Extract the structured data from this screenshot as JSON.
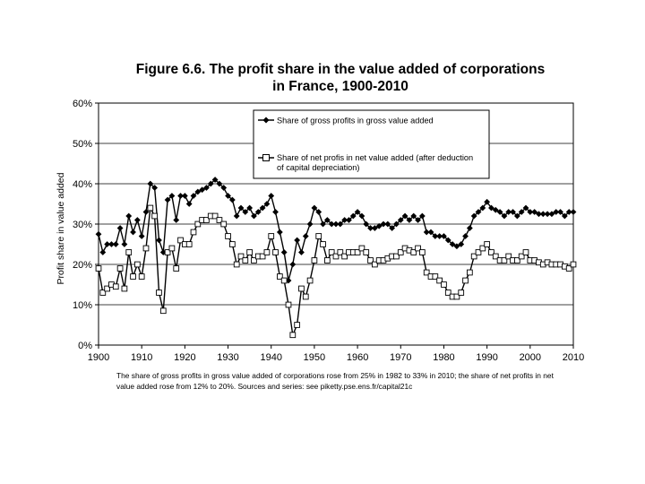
{
  "chart_data": {
    "type": "line",
    "title": [
      "Figure 6.6. The profit share in the value added of corporations",
      "in France, 1900-2010"
    ],
    "ylabel": "Profit share in value added",
    "xlabel": "",
    "xlim": [
      1900,
      2010
    ],
    "ylim": [
      0,
      0.6
    ],
    "x_ticks": [
      1900,
      1910,
      1920,
      1930,
      1940,
      1950,
      1960,
      1970,
      1980,
      1990,
      2000,
      2010
    ],
    "x_tick_labels": [
      "1900",
      "1910",
      "1920",
      "1930",
      "1940",
      "1950",
      "1960",
      "1970",
      "1980",
      "1990",
      "2000",
      "2010"
    ],
    "y_ticks": [
      0,
      0.1,
      0.2,
      0.3,
      0.4,
      0.5,
      0.6
    ],
    "y_tick_labels": [
      "0%",
      "10%",
      "20%",
      "30%",
      "40%",
      "50%",
      "60%"
    ],
    "grid": "horizontal",
    "legend_position": "top-center",
    "series": [
      {
        "name": "Share of gross profits in gross value added",
        "marker": "filled-diamond",
        "x": [
          1900,
          1901,
          1902,
          1903,
          1904,
          1905,
          1906,
          1907,
          1908,
          1909,
          1910,
          1911,
          1912,
          1913,
          1914,
          1915,
          1916,
          1917,
          1918,
          1919,
          1920,
          1921,
          1922,
          1923,
          1924,
          1925,
          1926,
          1927,
          1928,
          1929,
          1930,
          1931,
          1932,
          1933,
          1934,
          1935,
          1936,
          1937,
          1938,
          1939,
          1940,
          1941,
          1942,
          1943,
          1944,
          1945,
          1946,
          1947,
          1948,
          1949,
          1950,
          1951,
          1952,
          1953,
          1954,
          1955,
          1956,
          1957,
          1958,
          1959,
          1960,
          1961,
          1962,
          1963,
          1964,
          1965,
          1966,
          1967,
          1968,
          1969,
          1970,
          1971,
          1972,
          1973,
          1974,
          1975,
          1976,
          1977,
          1978,
          1979,
          1980,
          1981,
          1982,
          1983,
          1984,
          1985,
          1986,
          1987,
          1988,
          1989,
          1990,
          1991,
          1992,
          1993,
          1994,
          1995,
          1996,
          1997,
          1998,
          1999,
          2000,
          2001,
          2002,
          2003,
          2004,
          2005,
          2006,
          2007,
          2008,
          2009,
          2010
        ],
        "values": [
          0.275,
          0.23,
          0.25,
          0.25,
          0.25,
          0.29,
          0.25,
          0.32,
          0.28,
          0.31,
          0.27,
          0.33,
          0.4,
          0.39,
          0.26,
          0.23,
          0.36,
          0.37,
          0.31,
          0.37,
          0.37,
          0.35,
          0.37,
          0.38,
          0.385,
          0.39,
          0.4,
          0.41,
          0.4,
          0.39,
          0.37,
          0.36,
          0.32,
          0.34,
          0.33,
          0.34,
          0.32,
          0.33,
          0.34,
          0.35,
          0.37,
          0.33,
          0.28,
          0.23,
          0.16,
          0.2,
          0.26,
          0.23,
          0.27,
          0.3,
          0.34,
          0.33,
          0.3,
          0.31,
          0.3,
          0.3,
          0.3,
          0.31,
          0.31,
          0.32,
          0.33,
          0.32,
          0.3,
          0.29,
          0.29,
          0.295,
          0.3,
          0.3,
          0.29,
          0.3,
          0.31,
          0.32,
          0.31,
          0.32,
          0.31,
          0.32,
          0.28,
          0.28,
          0.27,
          0.27,
          0.27,
          0.26,
          0.25,
          0.245,
          0.25,
          0.27,
          0.29,
          0.32,
          0.33,
          0.34,
          0.355,
          0.34,
          0.335,
          0.33,
          0.32,
          0.33,
          0.33,
          0.32,
          0.33,
          0.34,
          0.33,
          0.33,
          0.325,
          0.325,
          0.325,
          0.325,
          0.33,
          0.33,
          0.32,
          0.33,
          0.33
        ]
      },
      {
        "name": "Share of net profis in net value added (after deduction of capital depreciation)",
        "marker": "open-square",
        "x": [
          1900,
          1901,
          1902,
          1903,
          1904,
          1905,
          1906,
          1907,
          1908,
          1909,
          1910,
          1911,
          1912,
          1913,
          1914,
          1915,
          1916,
          1917,
          1918,
          1919,
          1920,
          1921,
          1922,
          1923,
          1924,
          1925,
          1926,
          1927,
          1928,
          1929,
          1930,
          1931,
          1932,
          1933,
          1934,
          1935,
          1936,
          1937,
          1938,
          1939,
          1940,
          1941,
          1942,
          1943,
          1944,
          1945,
          1946,
          1947,
          1948,
          1949,
          1950,
          1951,
          1952,
          1953,
          1954,
          1955,
          1956,
          1957,
          1958,
          1959,
          1960,
          1961,
          1962,
          1963,
          1964,
          1965,
          1966,
          1967,
          1968,
          1969,
          1970,
          1971,
          1972,
          1973,
          1974,
          1975,
          1976,
          1977,
          1978,
          1979,
          1980,
          1981,
          1982,
          1983,
          1984,
          1985,
          1986,
          1987,
          1988,
          1989,
          1990,
          1991,
          1992,
          1993,
          1994,
          1995,
          1996,
          1997,
          1998,
          1999,
          2000,
          2001,
          2002,
          2003,
          2004,
          2005,
          2006,
          2007,
          2008,
          2009,
          2010
        ],
        "values": [
          0.19,
          0.13,
          0.14,
          0.15,
          0.145,
          0.19,
          0.14,
          0.23,
          0.17,
          0.2,
          0.17,
          0.24,
          0.34,
          0.32,
          0.13,
          0.085,
          0.23,
          0.24,
          0.19,
          0.26,
          0.25,
          0.25,
          0.28,
          0.3,
          0.31,
          0.31,
          0.32,
          0.32,
          0.31,
          0.3,
          0.27,
          0.25,
          0.2,
          0.22,
          0.21,
          0.23,
          0.21,
          0.22,
          0.22,
          0.23,
          0.27,
          0.23,
          0.17,
          0.16,
          0.1,
          0.025,
          0.05,
          0.14,
          0.12,
          0.16,
          0.21,
          0.27,
          0.25,
          0.21,
          0.23,
          0.22,
          0.23,
          0.22,
          0.23,
          0.23,
          0.23,
          0.24,
          0.23,
          0.21,
          0.2,
          0.21,
          0.21,
          0.215,
          0.22,
          0.22,
          0.23,
          0.24,
          0.235,
          0.23,
          0.24,
          0.23,
          0.18,
          0.17,
          0.17,
          0.16,
          0.15,
          0.13,
          0.12,
          0.12,
          0.13,
          0.16,
          0.18,
          0.22,
          0.23,
          0.24,
          0.25,
          0.23,
          0.22,
          0.21,
          0.21,
          0.22,
          0.21,
          0.21,
          0.22,
          0.23,
          0.21,
          0.21,
          0.205,
          0.2,
          0.205,
          0.2,
          0.2,
          0.2,
          0.195,
          0.19,
          0.2
        ]
      }
    ]
  },
  "caption": "The share of gross profits in gross value added of corporations rose from 25% in 1982 to 33% in 2010; the share of net profits in net value added rose from 12% to 20%. Sources and series: see piketty.pse.ens.fr/capital21c",
  "colors": {
    "line": "#000000",
    "grid": "#000000",
    "background": "#ffffff"
  }
}
